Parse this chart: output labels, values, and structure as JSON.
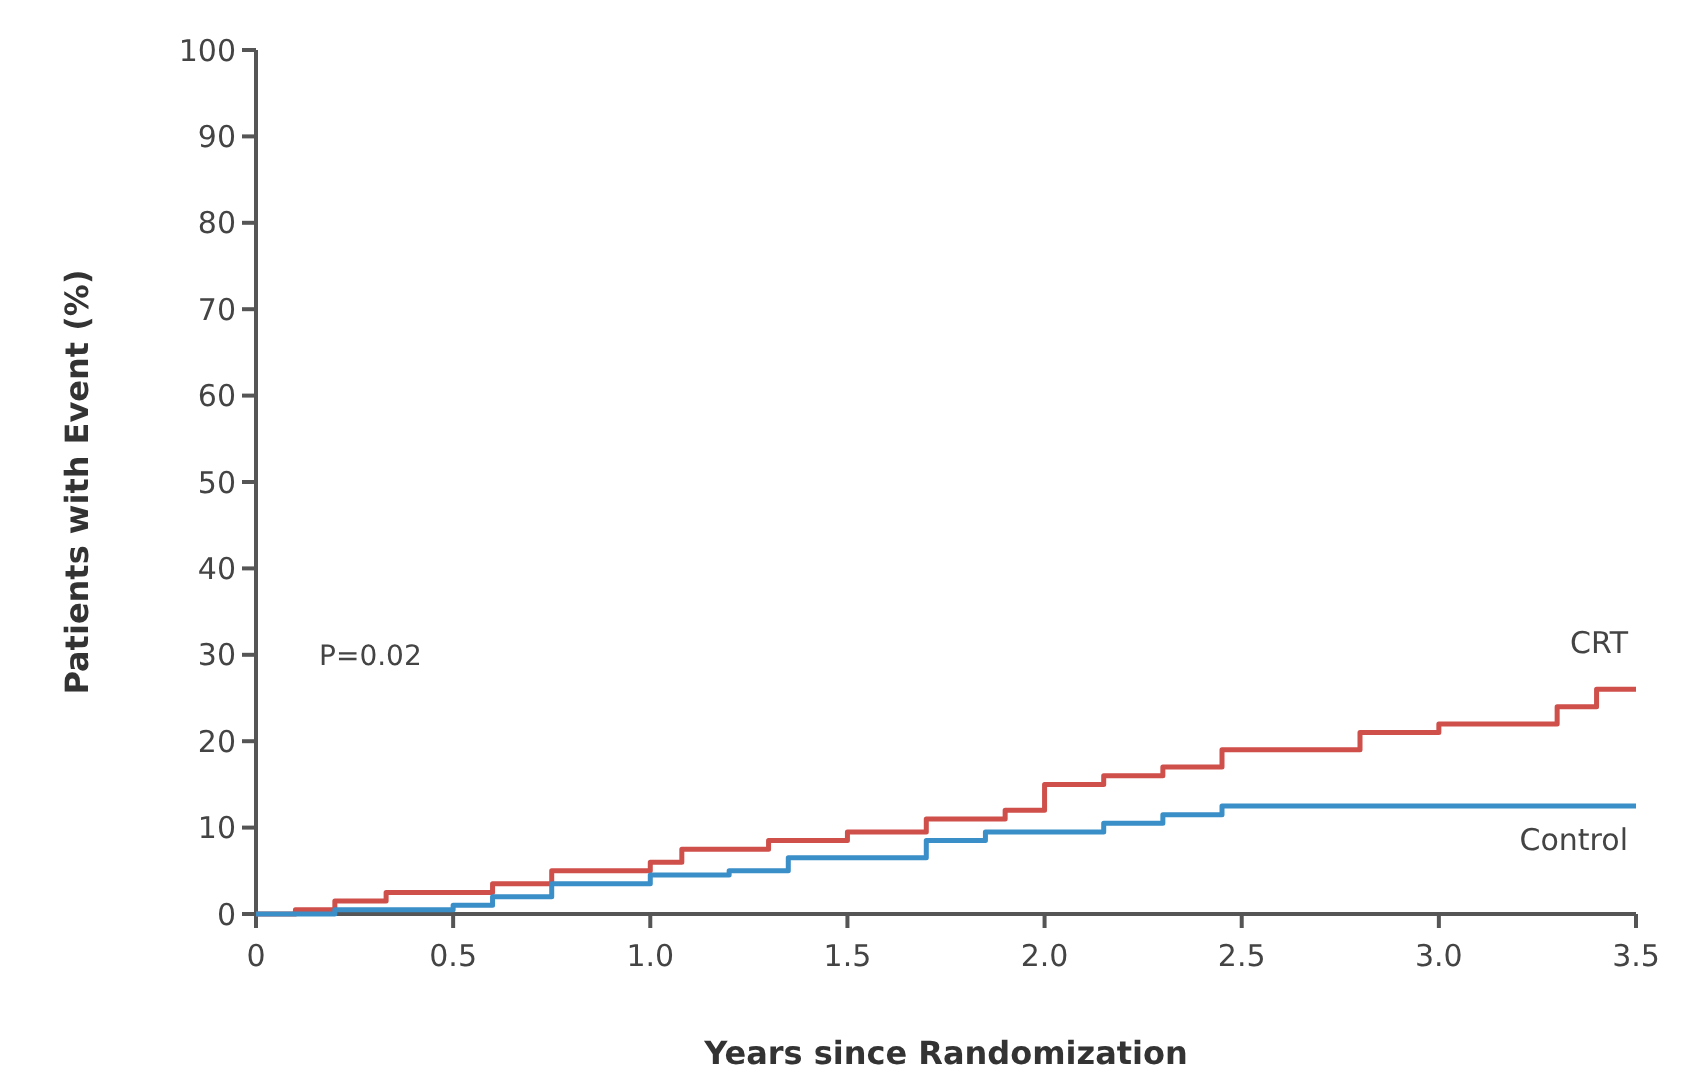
{
  "chart_data": {
    "type": "step",
    "xlabel": "Years since Randomization",
    "ylabel": "Patients with Event (%)",
    "xlim": [
      0,
      3.5
    ],
    "xticks": [
      {
        "value": 0,
        "label": "0"
      },
      {
        "value": 0.5,
        "label": "0.5"
      },
      {
        "value": 1,
        "label": "1.0"
      },
      {
        "value": 1.5,
        "label": "1.5"
      },
      {
        "value": 2,
        "label": "2.0"
      },
      {
        "value": 2.5,
        "label": "2.5"
      },
      {
        "value": 3,
        "label": "3.0"
      },
      {
        "value": 3.5,
        "label": "3.5"
      }
    ],
    "ylim": [
      0,
      100
    ],
    "yticks": [
      0,
      10,
      20,
      30,
      40,
      50,
      60,
      70,
      80,
      90,
      100
    ],
    "grid": false,
    "legend": false,
    "marker": "none",
    "line_style": "solid",
    "annotations": [
      "P=0.02"
    ],
    "series": [
      {
        "name": "CRT",
        "color": "#cf4f4a",
        "x": [
          0,
          0.1,
          0.2,
          0.33,
          0.6,
          0.75,
          1.0,
          1.08,
          1.3,
          1.5,
          1.7,
          1.9,
          2.0,
          2.15,
          2.3,
          2.45,
          2.8,
          3.0,
          3.3,
          3.4,
          3.5
        ],
        "values": [
          0,
          0.5,
          1.5,
          2.5,
          3.5,
          5,
          6,
          7.5,
          8.5,
          9.5,
          11,
          12,
          15,
          16,
          17,
          19,
          21,
          22,
          24,
          26,
          26
        ]
      },
      {
        "name": "Control",
        "color": "#3a8fc8",
        "x": [
          0,
          0.2,
          0.5,
          0.6,
          0.75,
          1.0,
          1.2,
          1.35,
          1.7,
          1.85,
          2.15,
          2.3,
          2.45,
          3.5
        ],
        "values": [
          0,
          0.5,
          1,
          2,
          3.5,
          4.5,
          5,
          6.5,
          8.5,
          9.5,
          10.5,
          11.5,
          12.5,
          12.5
        ]
      }
    ]
  }
}
